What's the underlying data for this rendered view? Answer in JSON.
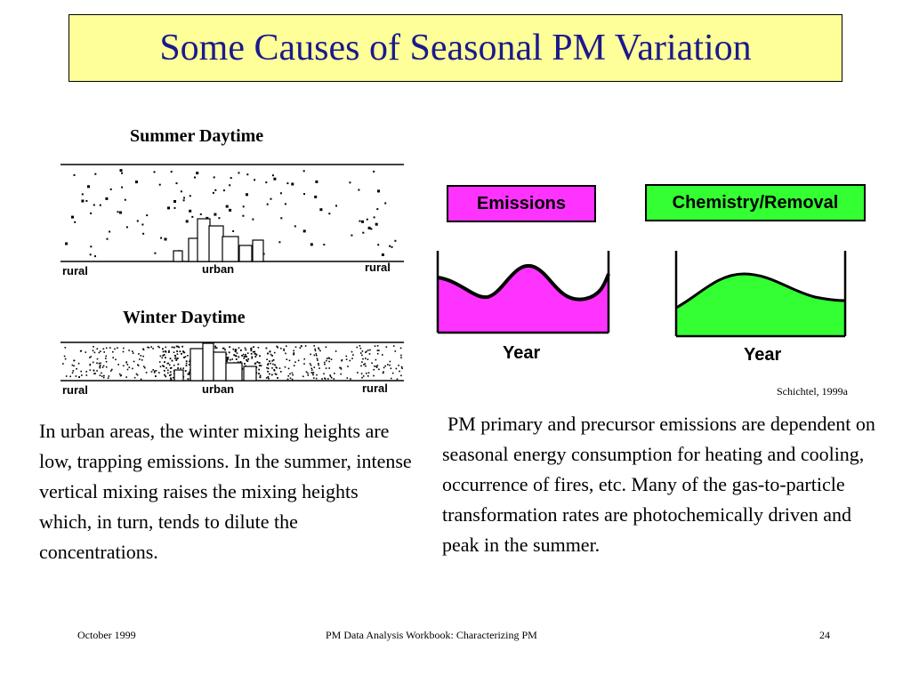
{
  "title": "Some Causes of Seasonal PM Variation",
  "summer": {
    "label": "Summer Daytime",
    "rural_left": "rural",
    "urban": "urban",
    "rural_right": "rural"
  },
  "winter": {
    "label": "Winter Daytime",
    "rural_left": "rural",
    "urban": "urban",
    "rural_right": "rural"
  },
  "emissions_panel": {
    "label": "Emissions",
    "x_label": "Year",
    "color": "#ff33ff"
  },
  "chemistry_panel": {
    "label": "Chemistry/Removal",
    "x_label": "Year",
    "color": "#33ff33"
  },
  "citation": "Schichtel, 1999a",
  "left_paragraph": "In urban areas, the winter mixing heights are low, trapping emissions. In the summer, intense vertical mixing raises the mixing heights which, in turn, tends to dilute the concentrations.",
  "right_paragraph": "PM primary and precursor emissions are dependent on seasonal energy consumption for heating and cooling, occurrence of fires, etc.  Many of the gas-to-particle transformation rates are photochemically driven and peak in the summer.",
  "footer": {
    "date": "October 1999",
    "center": "PM Data Analysis Workbook: Characterizing PM",
    "page": "24"
  }
}
